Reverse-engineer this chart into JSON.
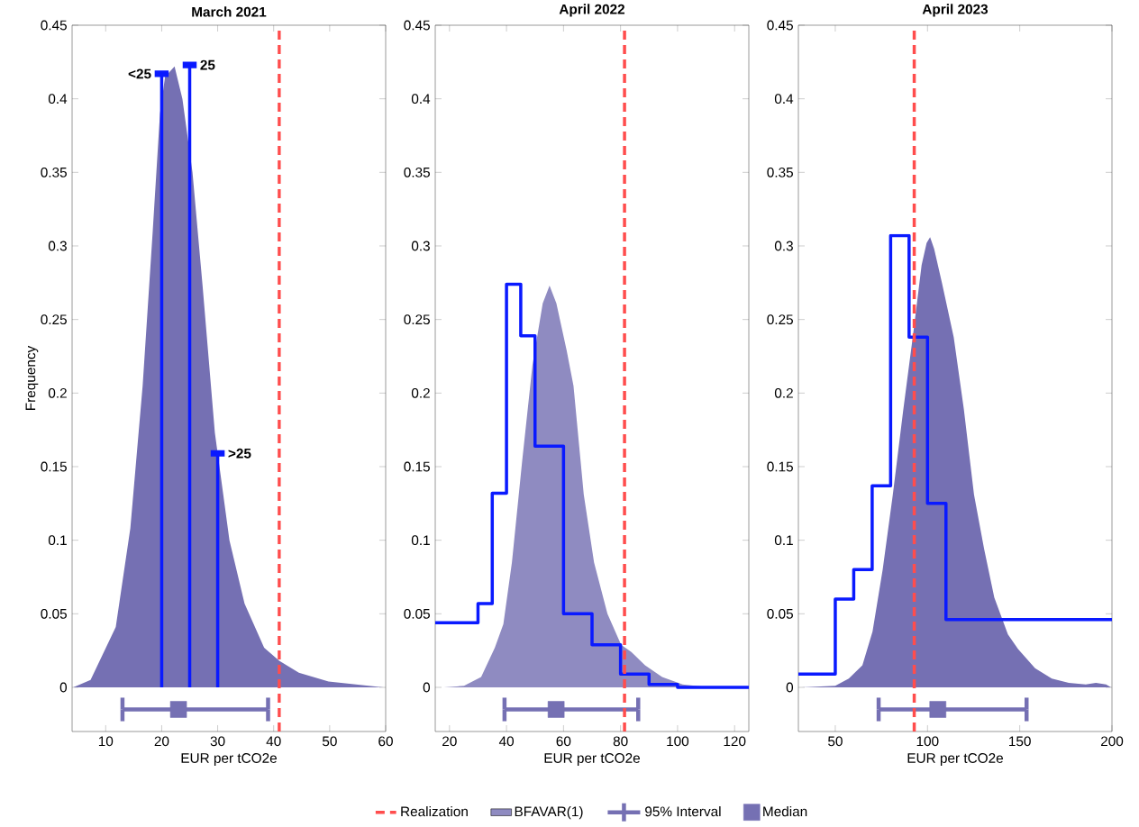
{
  "chart_data": [
    {
      "type": "area",
      "title": "March 2021",
      "xlabel": "EUR per tCO2e",
      "ylabel": "Frequency",
      "xlim": [
        4,
        60
      ],
      "xticks": [
        10,
        20,
        30,
        40,
        50,
        60
      ],
      "ylim": [
        -0.03,
        0.45
      ],
      "yticks": [
        0,
        0.05,
        0.1,
        0.15,
        0.2,
        0.25,
        0.3,
        0.35,
        0.4,
        0.45
      ],
      "series": [
        {
          "color": "#7570b3",
          "x": [
            4.2,
            7.3,
            11.8,
            14.4,
            16.6,
            18.4,
            19.7,
            20.6,
            22.3,
            23.7,
            25.5,
            27.3,
            29.5,
            32.1,
            34.8,
            38.3,
            41,
            44.5,
            49.8,
            59.6
          ],
          "values": [
            0,
            0.005,
            0.041,
            0.108,
            0.205,
            0.31,
            0.39,
            0.415,
            0.422,
            0.4,
            0.35,
            0.273,
            0.173,
            0.1,
            0.057,
            0.027,
            0.018,
            0.01,
            0.004,
            0
          ]
        },
        {
          "type": "lollipop",
          "color": "#0a1aff",
          "x": [
            20,
            25,
            30
          ],
          "values": [
            0.417,
            0.423,
            0.159
          ]
        },
        {
          "type": "line",
          "color": "#7570b3",
          "x": [
            13,
            39
          ],
          "values": [
            -0.015,
            -0.015
          ],
          "errors": [
            0.008,
            0.008
          ]
        },
        {
          "type": "scatter",
          "color": "#7570b3",
          "marker": "square",
          "x": [
            23
          ],
          "values": [
            -0.015
          ]
        }
      ],
      "annotations": [
        {
          "text": "<25",
          "x": 20,
          "y": 0.417
        },
        {
          "text": "25",
          "x": 25,
          "y": 0.423
        },
        {
          "text": ">25",
          "x": 30,
          "y": 0.159
        }
      ],
      "ref_lines": [
        {
          "axis": "x",
          "value": 41,
          "color": "#ff4d4d",
          "line_style": "dashed"
        }
      ]
    },
    {
      "type": "area",
      "title": "April 2022",
      "xlabel": "EUR per tCO2e",
      "xlim": [
        15,
        125
      ],
      "xticks": [
        20,
        40,
        60,
        80,
        100,
        120
      ],
      "ylim": [
        -0.03,
        0.45
      ],
      "yticks": [
        0,
        0.05,
        0.1,
        0.15,
        0.2,
        0.25,
        0.3,
        0.35,
        0.4,
        0.45
      ],
      "legend": "bottom",
      "series": [
        {
          "name": "BFAVAR(1)",
          "color": "#8f8bc1",
          "x": [
            18,
            25.1,
            31.1,
            35.9,
            38.9,
            41.9,
            45.5,
            49.1,
            52.7,
            55.1,
            57.5,
            61.1,
            63.5,
            67.1,
            70.7,
            75.4,
            80.2,
            83.8,
            88.6,
            94.6,
            101.8,
            111.4,
            125
          ],
          "values": [
            0,
            0.001,
            0.007,
            0.027,
            0.043,
            0.085,
            0.154,
            0.219,
            0.261,
            0.273,
            0.261,
            0.229,
            0.205,
            0.131,
            0.085,
            0.05,
            0.029,
            0.024,
            0.015,
            0.007,
            0.002,
            0,
            0
          ]
        },
        {
          "type": "step",
          "color": "#0a1aff",
          "x": [
            15,
            30,
            35,
            40,
            45,
            50,
            60,
            70,
            80,
            90,
            100,
            125
          ],
          "values": [
            0.044,
            0.057,
            0.132,
            0.274,
            0.239,
            0.164,
            0.05,
            0.029,
            0.009,
            0.002,
            0,
            0
          ]
        },
        {
          "type": "line",
          "name": "95% Interval",
          "color": "#7570b3",
          "x": [
            39.3,
            86.2
          ],
          "values": [
            -0.015,
            -0.015
          ],
          "errors": [
            0.008,
            0.008
          ]
        },
        {
          "type": "scatter",
          "name": "Median",
          "color": "#7570b3",
          "marker": "square",
          "x": [
            57.4
          ],
          "values": [
            -0.015
          ]
        }
      ],
      "ref_lines": [
        {
          "axis": "x",
          "value": 81.4,
          "label": "Realization",
          "color": "#ff4d4d",
          "line_style": "dashed"
        }
      ]
    },
    {
      "type": "area",
      "title": "April 2023",
      "xlabel": "EUR per tCO2e",
      "xlim": [
        30,
        200
      ],
      "xticks": [
        50,
        100,
        150,
        200
      ],
      "ylim": [
        -0.03,
        0.45
      ],
      "yticks": [
        0,
        0.05,
        0.1,
        0.15,
        0.2,
        0.25,
        0.3,
        0.35,
        0.4,
        0.45
      ],
      "series": [
        {
          "color": "#7570b3",
          "x": [
            31.7,
            50,
            57.3,
            64.7,
            70.2,
            75.7,
            81.2,
            86.7,
            92.2,
            96.8,
            99.5,
            101.4,
            103.6,
            107.8,
            114.2,
            119.7,
            125.2,
            130.7,
            136.2,
            143.6,
            149.1,
            158.3,
            167.4,
            176.6,
            185.8,
            191.3,
            196.8,
            199.5
          ],
          "values": [
            0,
            0.001,
            0.006,
            0.015,
            0.038,
            0.08,
            0.131,
            0.187,
            0.24,
            0.287,
            0.302,
            0.306,
            0.298,
            0.275,
            0.238,
            0.189,
            0.131,
            0.094,
            0.061,
            0.036,
            0.026,
            0.013,
            0.006,
            0.003,
            0.002,
            0.003,
            0.002,
            0
          ]
        },
        {
          "type": "step",
          "color": "#0a1aff",
          "x": [
            30,
            50,
            60,
            70,
            80,
            90,
            100,
            110,
            200
          ],
          "values": [
            0.009,
            0.06,
            0.08,
            0.137,
            0.307,
            0.238,
            0.125,
            0.046,
            0.046
          ]
        },
        {
          "type": "line",
          "color": "#7570b3",
          "x": [
            73.5,
            153.7
          ],
          "values": [
            -0.015,
            -0.015
          ],
          "errors": [
            0.008,
            0.008
          ]
        },
        {
          "type": "scatter",
          "color": "#7570b3",
          "marker": "square",
          "x": [
            105.6
          ],
          "values": [
            -0.015
          ]
        }
      ],
      "ref_lines": [
        {
          "axis": "x",
          "value": 92.8,
          "color": "#ff4d4d",
          "line_style": "dashed"
        }
      ]
    }
  ]
}
